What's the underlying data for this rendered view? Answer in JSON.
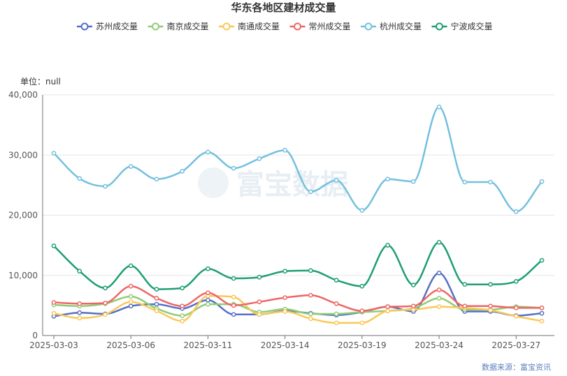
{
  "chart_data": {
    "type": "line",
    "title": "华东各地区建材成交量",
    "unit_label": "单位：null",
    "source": "数据来源：富宝资讯",
    "watermark": "富宝数据",
    "ylim": [
      0,
      40000
    ],
    "y_ticks": [
      "0",
      "10,000",
      "20,000",
      "30,000",
      "40,000"
    ],
    "y_tick_values": [
      0,
      10000,
      20000,
      30000,
      40000
    ],
    "x": [
      "2025-03-03",
      "2025-03-04",
      "2025-03-05",
      "2025-03-06",
      "2025-03-07",
      "2025-03-10",
      "2025-03-11",
      "2025-03-12",
      "2025-03-13",
      "2025-03-14",
      "2025-03-17",
      "2025-03-18",
      "2025-03-19",
      "2025-03-20",
      "2025-03-21",
      "2025-03-24",
      "2025-03-25",
      "2025-03-26",
      "2025-03-27",
      "2025-03-28"
    ],
    "x_tick_labels": [
      {
        "index": 0,
        "label": "2025-03-03"
      },
      {
        "index": 3,
        "label": "2025-03-06"
      },
      {
        "index": 6,
        "label": "2025-03-11"
      },
      {
        "index": 9,
        "label": "2025-03-14"
      },
      {
        "index": 12,
        "label": "2025-03-19"
      },
      {
        "index": 15,
        "label": "2025-03-24"
      },
      {
        "index": 18,
        "label": "2025-03-27"
      }
    ],
    "grid": true,
    "legend_position": "top-center",
    "series": [
      {
        "name": "苏州成交量",
        "color": "#5470c6",
        "values": [
          3200,
          3800,
          3600,
          4900,
          5200,
          4500,
          5900,
          3500,
          3500,
          4100,
          3700,
          3400,
          3900,
          4800,
          4000,
          10400,
          4000,
          4000,
          3300,
          3700
        ]
      },
      {
        "name": "南京成交量",
        "color": "#91cc75",
        "values": [
          5100,
          4900,
          5300,
          6500,
          4500,
          3300,
          5200,
          5200,
          3900,
          4400,
          3600,
          3600,
          3900,
          4100,
          4500,
          6200,
          4300,
          4300,
          4800,
          4600
        ]
      },
      {
        "name": "南通成交量",
        "color": "#fac858",
        "values": [
          3700,
          2900,
          3500,
          5600,
          4100,
          2400,
          6600,
          6400,
          3500,
          4000,
          2800,
          2100,
          2100,
          4100,
          4300,
          4800,
          4600,
          4200,
          3200,
          2400
        ]
      },
      {
        "name": "常州成交量",
        "color": "#ee6666",
        "values": [
          5500,
          5300,
          5400,
          8200,
          6200,
          4900,
          7100,
          5000,
          5600,
          6300,
          6700,
          5300,
          4100,
          4800,
          4900,
          7600,
          4900,
          4900,
          4600,
          4600
        ]
      },
      {
        "name": "杭州成交量",
        "color": "#73c0de",
        "values": [
          30300,
          26100,
          24800,
          28100,
          26000,
          27300,
          30500,
          27800,
          29400,
          30800,
          23900,
          25800,
          20800,
          26000,
          25600,
          38000,
          25500,
          25500,
          20600,
          25600
        ]
      },
      {
        "name": "宁波成交量",
        "color": "#1e9e74",
        "values": [
          14900,
          10700,
          7900,
          11600,
          7700,
          7900,
          11100,
          9500,
          9700,
          10700,
          10800,
          9200,
          8200,
          15000,
          8400,
          15500,
          8500,
          8500,
          9000,
          12500
        ]
      }
    ]
  }
}
